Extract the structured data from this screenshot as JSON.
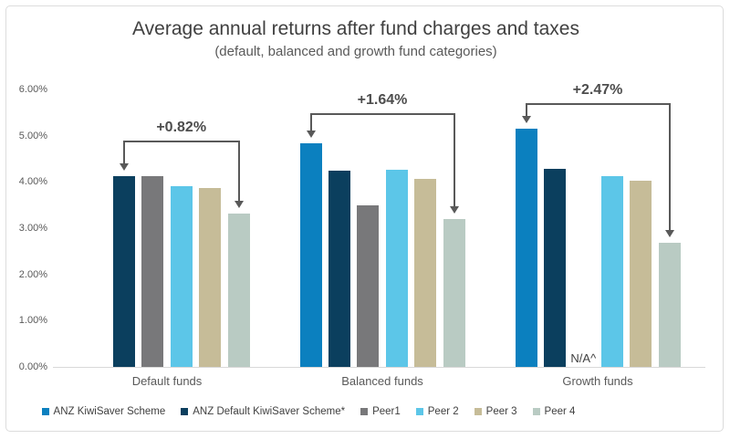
{
  "chart_data": {
    "type": "bar",
    "title": "Average annual returns after fund charges and taxes",
    "subtitle": "(default, balanced and growth fund categories)",
    "categories": [
      "Default funds",
      "Balanced funds",
      "Growth funds"
    ],
    "y_ticks": [
      "6.00%",
      "5.00%",
      "4.00%",
      "3.00%",
      "2.00%",
      "1.00%",
      "0.00%"
    ],
    "ylim": [
      0,
      6
    ],
    "grid": "off",
    "legend_position": "bottom",
    "series": [
      {
        "name": "ANZ KiwiSaver Scheme",
        "color": "#0b80bf",
        "values": [
          null,
          4.83,
          5.15
        ]
      },
      {
        "name": "ANZ Default KiwiSaver Scheme*",
        "color": "#0b3f5e",
        "values": [
          4.13,
          4.24,
          4.28
        ]
      },
      {
        "name": "Peer1",
        "color": "#78787a",
        "values": [
          4.13,
          3.5,
          null
        ]
      },
      {
        "name": "Peer 2",
        "color": "#5cc6e8",
        "values": [
          3.9,
          4.26,
          4.12
        ]
      },
      {
        "name": "Peer 3",
        "color": "#c6bc98",
        "values": [
          3.86,
          4.07,
          4.03
        ]
      },
      {
        "name": "Peer 4",
        "color": "#b9cbc3",
        "values": [
          3.31,
          3.19,
          2.68
        ]
      }
    ],
    "annotations": [
      {
        "category": 0,
        "label": "+0.82%",
        "from_series": 1,
        "to_series": 5
      },
      {
        "category": 1,
        "label": "+1.64%",
        "from_series": 0,
        "to_series": 5
      },
      {
        "category": 2,
        "label": "+2.47%",
        "from_series": 0,
        "to_series": 5
      }
    ],
    "na_note": {
      "category": 2,
      "series": 2,
      "text": "N/A^"
    },
    "annotation_color": "#595959",
    "text_color": "#595959",
    "title_color": "#404040"
  }
}
